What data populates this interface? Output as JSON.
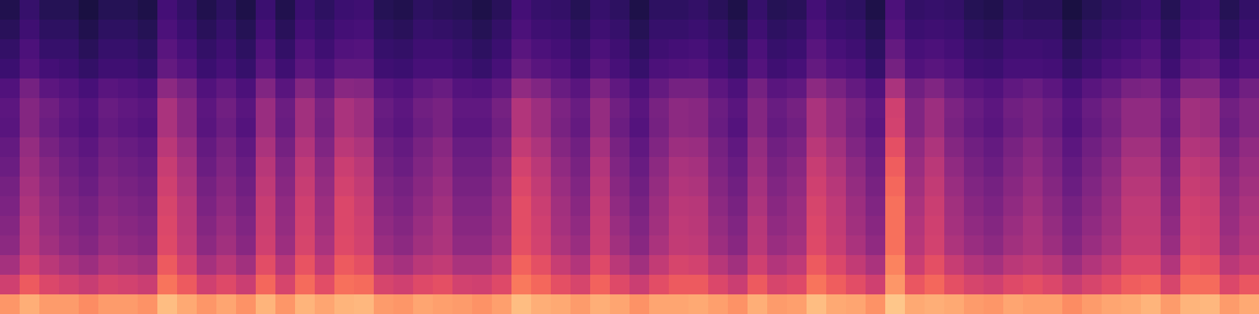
{
  "chart_data": {
    "type": "heatmap",
    "color": "magma",
    "tick_labels": false,
    "zlim": [
      0,
      100
    ],
    "cells": [
      [
        14,
        19,
        15,
        15,
        12,
        15,
        15,
        13,
        22,
        18,
        14,
        17,
        13,
        20,
        14,
        20,
        17,
        20,
        21,
        15,
        14,
        17,
        16,
        15,
        13,
        16,
        22,
        19,
        18,
        15,
        19,
        17,
        13,
        17,
        17,
        18,
        16,
        13,
        19,
        15,
        16,
        22,
        18,
        17,
        13,
        24,
        18,
        19,
        18,
        15,
        14,
        17,
        16,
        16,
        12,
        15,
        17,
        18,
        20,
        15,
        20,
        21,
        15,
        18
      ],
      [
        16,
        21,
        17,
        17,
        14,
        17,
        17,
        15,
        24,
        20,
        16,
        19,
        15,
        22,
        16,
        22,
        19,
        22,
        23,
        17,
        16,
        19,
        18,
        17,
        15,
        18,
        24,
        21,
        20,
        17,
        21,
        19,
        15,
        19,
        19,
        20,
        18,
        15,
        21,
        17,
        18,
        24,
        20,
        19,
        15,
        26,
        20,
        21,
        20,
        17,
        16,
        19,
        18,
        18,
        14,
        17,
        19,
        20,
        22,
        17,
        22,
        23,
        17,
        20
      ],
      [
        18,
        24,
        19,
        19,
        16,
        19,
        19,
        17,
        27,
        23,
        18,
        21,
        17,
        25,
        18,
        25,
        21,
        25,
        26,
        19,
        18,
        21,
        21,
        19,
        17,
        20,
        27,
        24,
        22,
        19,
        24,
        21,
        17,
        21,
        22,
        23,
        20,
        17,
        24,
        19,
        20,
        27,
        23,
        21,
        17,
        30,
        23,
        24,
        22,
        19,
        18,
        21,
        21,
        20,
        16,
        19,
        21,
        23,
        25,
        19,
        25,
        26,
        19,
        23
      ],
      [
        20,
        26,
        22,
        21,
        18,
        21,
        21,
        19,
        30,
        26,
        20,
        23,
        19,
        28,
        21,
        28,
        24,
        29,
        29,
        21,
        20,
        23,
        23,
        21,
        19,
        23,
        31,
        27,
        25,
        21,
        27,
        23,
        19,
        24,
        25,
        26,
        22,
        19,
        26,
        21,
        23,
        30,
        26,
        24,
        19,
        34,
        25,
        27,
        25,
        21,
        20,
        23,
        23,
        22,
        18,
        21,
        24,
        26,
        28,
        21,
        28,
        29,
        22,
        25
      ],
      [
        25,
        34,
        28,
        26,
        23,
        27,
        26,
        24,
        40,
        34,
        25,
        29,
        24,
        37,
        27,
        38,
        30,
        39,
        38,
        27,
        25,
        29,
        31,
        26,
        25,
        29,
        41,
        37,
        31,
        27,
        36,
        29,
        24,
        30,
        34,
        34,
        28,
        24,
        34,
        27,
        29,
        40,
        35,
        30,
        25,
        47,
        33,
        37,
        31,
        27,
        25,
        29,
        31,
        28,
        23,
        27,
        30,
        35,
        36,
        27,
        38,
        38,
        28,
        33
      ],
      [
        28,
        38,
        33,
        29,
        26,
        31,
        29,
        27,
        47,
        39,
        28,
        33,
        27,
        43,
        32,
        45,
        35,
        47,
        44,
        31,
        28,
        33,
        35,
        29,
        29,
        34,
        49,
        44,
        36,
        31,
        42,
        33,
        27,
        35,
        40,
        39,
        32,
        27,
        38,
        31,
        34,
        47,
        41,
        35,
        29,
        56,
        37,
        44,
        36,
        31,
        28,
        33,
        35,
        32,
        26,
        31,
        35,
        41,
        41,
        31,
        45,
        44,
        33,
        37
      ],
      [
        27,
        38,
        32,
        28,
        25,
        30,
        28,
        26,
        47,
        39,
        27,
        32,
        26,
        43,
        31,
        45,
        34,
        47,
        44,
        30,
        27,
        32,
        35,
        28,
        28,
        33,
        49,
        44,
        35,
        30,
        42,
        32,
        26,
        34,
        40,
        39,
        31,
        26,
        38,
        30,
        33,
        47,
        41,
        34,
        28,
        57,
        37,
        44,
        35,
        30,
        27,
        32,
        35,
        31,
        25,
        30,
        34,
        41,
        41,
        30,
        45,
        44,
        32,
        37
      ],
      [
        30,
        42,
        35,
        31,
        28,
        33,
        31,
        29,
        51,
        43,
        30,
        35,
        29,
        47,
        34,
        49,
        37,
        51,
        48,
        33,
        30,
        35,
        39,
        31,
        31,
        36,
        53,
        48,
        38,
        33,
        46,
        35,
        29,
        37,
        44,
        43,
        34,
        29,
        42,
        33,
        36,
        51,
        45,
        37,
        31,
        62,
        41,
        48,
        38,
        33,
        30,
        35,
        39,
        34,
        28,
        33,
        37,
        45,
        45,
        33,
        49,
        48,
        35,
        41
      ],
      [
        32,
        44,
        38,
        33,
        30,
        35,
        33,
        31,
        54,
        46,
        32,
        37,
        31,
        50,
        37,
        52,
        40,
        55,
        51,
        35,
        32,
        37,
        41,
        33,
        33,
        39,
        57,
        51,
        41,
        35,
        49,
        37,
        31,
        40,
        47,
        46,
        36,
        31,
        44,
        35,
        39,
        54,
        48,
        40,
        33,
        66,
        43,
        51,
        41,
        35,
        32,
        37,
        41,
        36,
        30,
        35,
        40,
        48,
        48,
        35,
        52,
        51,
        38,
        43
      ],
      [
        34,
        46,
        40,
        35,
        32,
        37,
        35,
        33,
        56,
        48,
        34,
        39,
        33,
        52,
        39,
        54,
        42,
        57,
        53,
        37,
        34,
        39,
        43,
        35,
        35,
        41,
        59,
        53,
        43,
        37,
        51,
        39,
        33,
        42,
        49,
        48,
        38,
        33,
        46,
        37,
        41,
        56,
        50,
        42,
        35,
        68,
        45,
        53,
        43,
        37,
        34,
        39,
        43,
        38,
        32,
        37,
        42,
        50,
        50,
        37,
        54,
        53,
        40,
        45
      ],
      [
        36,
        48,
        42,
        37,
        34,
        39,
        37,
        35,
        58,
        50,
        36,
        41,
        35,
        54,
        41,
        56,
        44,
        59,
        55,
        39,
        36,
        41,
        45,
        37,
        37,
        43,
        61,
        55,
        45,
        39,
        53,
        41,
        35,
        44,
        51,
        50,
        40,
        35,
        48,
        39,
        43,
        58,
        52,
        44,
        37,
        70,
        47,
        55,
        45,
        39,
        36,
        41,
        45,
        40,
        34,
        39,
        44,
        52,
        52,
        39,
        56,
        55,
        42,
        47
      ],
      [
        38,
        50,
        43,
        39,
        36,
        41,
        39,
        37,
        59,
        51,
        38,
        43,
        37,
        55,
        42,
        57,
        45,
        59,
        56,
        41,
        38,
        43,
        47,
        39,
        39,
        44,
        61,
        56,
        46,
        41,
        54,
        43,
        37,
        45,
        52,
        51,
        42,
        37,
        50,
        41,
        44,
        59,
        53,
        45,
        39,
        70,
        49,
        56,
        46,
        41,
        38,
        43,
        47,
        42,
        36,
        41,
        45,
        53,
        53,
        41,
        57,
        56,
        43,
        49
      ],
      [
        40,
        51,
        45,
        41,
        38,
        43,
        41,
        39,
        60,
        52,
        40,
        45,
        39,
        56,
        44,
        58,
        47,
        60,
        57,
        43,
        40,
        45,
        48,
        41,
        41,
        46,
        62,
        57,
        48,
        43,
        55,
        45,
        39,
        47,
        53,
        52,
        44,
        39,
        51,
        43,
        46,
        60,
        54,
        47,
        41,
        70,
        50,
        57,
        48,
        43,
        40,
        45,
        48,
        44,
        38,
        43,
        47,
        54,
        54,
        43,
        58,
        57,
        45,
        50
      ],
      [
        46,
        56,
        51,
        47,
        44,
        49,
        47,
        45,
        65,
        57,
        46,
        51,
        45,
        61,
        50,
        63,
        53,
        65,
        62,
        49,
        46,
        51,
        53,
        47,
        47,
        52,
        67,
        62,
        54,
        49,
        60,
        51,
        45,
        53,
        58,
        57,
        50,
        45,
        56,
        49,
        52,
        65,
        59,
        53,
        47,
        74,
        55,
        62,
        54,
        49,
        46,
        51,
        53,
        50,
        44,
        49,
        53,
        59,
        59,
        49,
        63,
        62,
        51,
        55
      ],
      [
        56,
        65,
        59,
        57,
        54,
        58,
        57,
        55,
        71,
        65,
        56,
        60,
        55,
        68,
        58,
        69,
        61,
        70,
        69,
        58,
        56,
        60,
        62,
        57,
        56,
        60,
        72,
        68,
        62,
        58,
        67,
        60,
        55,
        61,
        65,
        65,
        59,
        55,
        65,
        58,
        60,
        71,
        66,
        61,
        56,
        78,
        64,
        68,
        62,
        58,
        56,
        60,
        62,
        59,
        54,
        58,
        61,
        66,
        67,
        58,
        69,
        69,
        59,
        64
      ],
      [
        78,
        83,
        79,
        79,
        76,
        79,
        79,
        77,
        86,
        82,
        78,
        81,
        77,
        84,
        78,
        84,
        81,
        84,
        85,
        79,
        78,
        81,
        80,
        79,
        77,
        80,
        86,
        83,
        82,
        79,
        83,
        81,
        77,
        81,
        81,
        82,
        80,
        77,
        83,
        79,
        80,
        86,
        82,
        81,
        77,
        88,
        82,
        83,
        82,
        79,
        78,
        81,
        80,
        80,
        76,
        79,
        81,
        82,
        84,
        79,
        84,
        85,
        79,
        82
      ]
    ]
  }
}
